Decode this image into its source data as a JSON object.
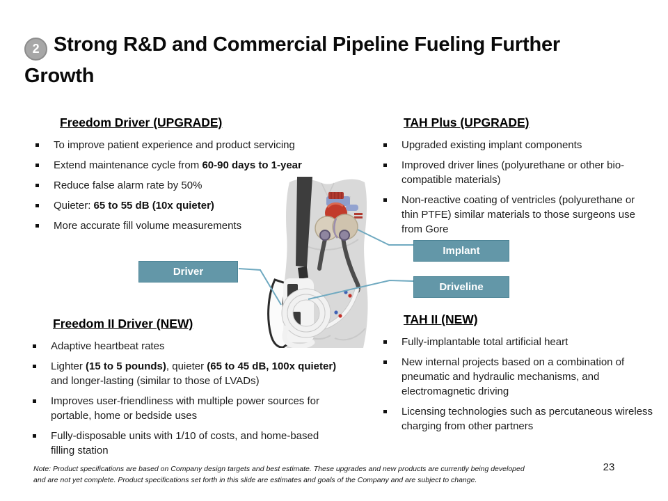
{
  "slide": {
    "badge_number": "2",
    "title_line1": "Strong R&D and Commercial Pipeline Fueling Further",
    "title_line2": "Growth",
    "page_number": "23",
    "note": "Note: Product specifications are based on Company design targets and best estimate. These upgrades and new products are currently being developed and are not yet complete. Product specifications set forth in this slide are estimates and goals of the Company and are subject to change."
  },
  "sections": [
    {
      "id": "freedom-driver-upgrade",
      "header": "Freedom Driver (UPGRADE)",
      "bullets": [
        [
          {
            "text": "To improve patient experience and product servicing"
          }
        ],
        [
          {
            "text": "Extend maintenance cycle from "
          },
          {
            "text": "60-90 days to 1-year",
            "bold": true
          }
        ],
        [
          {
            "text": "Reduce false alarm rate by 50%"
          }
        ],
        [
          {
            "text": "Quieter: "
          },
          {
            "text": "65 to 55 dB (10x quieter)",
            "bold": true
          }
        ],
        [
          {
            "text": "More accurate fill volume measurements"
          }
        ]
      ]
    },
    {
      "id": "tah-plus-upgrade",
      "header": "TAH Plus (UPGRADE)",
      "bullets": [
        [
          {
            "text": "Upgraded existing implant components"
          }
        ],
        [
          {
            "text": "Improved driver lines (polyurethane or other bio-compatible materials)"
          }
        ],
        [
          {
            "text": "Non-reactive coating of ventricles (polyurethane or thin PTFE) similar materials to those surgeons use from Gore"
          }
        ]
      ]
    },
    {
      "id": "freedom-ii-driver-new",
      "header": "Freedom II Driver (NEW)",
      "bullets": [
        [
          {
            "text": "Adaptive heartbeat rates"
          }
        ],
        [
          {
            "text": "Lighter "
          },
          {
            "text": "(15 to 5 pounds)",
            "bold": true
          },
          {
            "text": ", quieter "
          },
          {
            "text": "(65 to 45 dB, 100x quieter)",
            "bold": true
          },
          {
            "text": " and longer-lasting (similar to those of LVADs)"
          }
        ],
        [
          {
            "text": "Improves user-friendliness with multiple power sources for portable, home or bedside uses"
          }
        ],
        [
          {
            "text": "Fully-disposable units with 1/10 of costs, and home-based filling station"
          }
        ]
      ]
    },
    {
      "id": "tah-ii-new",
      "header": "TAH II (NEW)",
      "bullets": [
        [
          {
            "text": "Fully-implantable total artificial heart"
          }
        ],
        [
          {
            "text": "New internal projects based on a combination of pneumatic and hydraulic mechanisms, and electromagnetic driving"
          }
        ],
        [
          {
            "text": "Licensing technologies such as percutaneous wireless charging from other partners"
          }
        ]
      ]
    }
  ],
  "diagram": {
    "labels": [
      {
        "id": "driver",
        "text": "Driver"
      },
      {
        "id": "implant",
        "text": "Implant"
      },
      {
        "id": "driveline",
        "text": "Driveline"
      }
    ],
    "colors": {
      "label_bg": "#6397a8",
      "label_border": "#4c8496",
      "leader_line": "#6fa9c0",
      "badge_gray": "#a7a7a7"
    }
  }
}
